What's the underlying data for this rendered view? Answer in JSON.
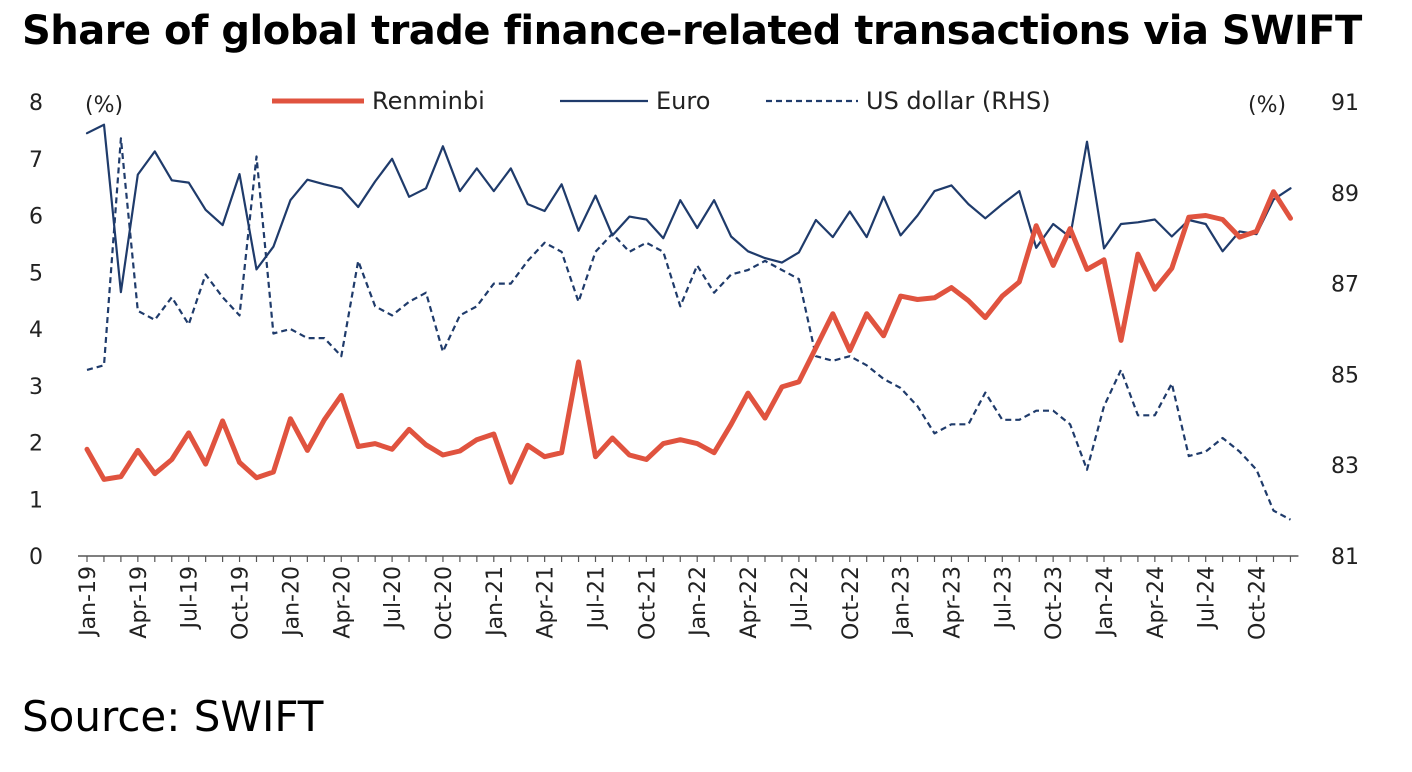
{
  "title": "Share of global trade finance-related transactions via SWIFT",
  "source": "Source: SWIFT",
  "chart_data": {
    "type": "line",
    "title": "Share of global trade finance-related transactions via SWIFT",
    "left_axis": {
      "unit": "(%)",
      "range": [
        0,
        8
      ],
      "ticks": [
        0,
        1,
        2,
        3,
        4,
        5,
        6,
        7,
        8
      ]
    },
    "right_axis": {
      "unit": "(%)",
      "range": [
        81,
        91
      ],
      "ticks": [
        81,
        83,
        85,
        87,
        89,
        91
      ]
    },
    "x_tick_labels": [
      "Jan-19",
      "Apr-19",
      "Jul-19",
      "Oct-19",
      "Jan-20",
      "Apr-20",
      "Jul-20",
      "Oct-20",
      "Jan-21",
      "Apr-21",
      "Jul-21",
      "Oct-21",
      "Jan-22",
      "Apr-22",
      "Jul-22",
      "Oct-22",
      "Jan-23",
      "Apr-23",
      "Jul-23",
      "Oct-23",
      "Jan-24",
      "Apr-24",
      "Jul-24",
      "Oct-24"
    ],
    "x": [
      "Jan-19",
      "Feb-19",
      "Mar-19",
      "Apr-19",
      "May-19",
      "Jun-19",
      "Jul-19",
      "Aug-19",
      "Sep-19",
      "Oct-19",
      "Nov-19",
      "Dec-19",
      "Jan-20",
      "Feb-20",
      "Mar-20",
      "Apr-20",
      "May-20",
      "Jun-20",
      "Jul-20",
      "Aug-20",
      "Sep-20",
      "Oct-20",
      "Nov-20",
      "Dec-20",
      "Jan-21",
      "Feb-21",
      "Mar-21",
      "Apr-21",
      "May-21",
      "Jun-21",
      "Jul-21",
      "Aug-21",
      "Sep-21",
      "Oct-21",
      "Nov-21",
      "Dec-21",
      "Jan-22",
      "Feb-22",
      "Mar-22",
      "Apr-22",
      "May-22",
      "Jun-22",
      "Jul-22",
      "Aug-22",
      "Sep-22",
      "Oct-22",
      "Nov-22",
      "Dec-22",
      "Jan-23",
      "Feb-23",
      "Mar-23",
      "Apr-23",
      "May-23",
      "Jun-23",
      "Jul-23",
      "Aug-23",
      "Sep-23",
      "Oct-23",
      "Nov-23",
      "Dec-23",
      "Jan-24",
      "Feb-24",
      "Mar-24",
      "Apr-24",
      "May-24",
      "Jun-24",
      "Jul-24",
      "Aug-24",
      "Sep-24",
      "Oct-24",
      "Nov-24",
      "Dec-24"
    ],
    "legend": {
      "placement": "top-center"
    },
    "grid": false,
    "series": [
      {
        "name": "Renminbi",
        "axis": "left",
        "color": "#e0533f",
        "style": "solid-thick",
        "values": [
          1.88,
          1.35,
          1.4,
          1.86,
          1.45,
          1.7,
          2.17,
          1.62,
          2.38,
          1.65,
          1.38,
          1.48,
          2.42,
          1.86,
          2.4,
          2.83,
          1.93,
          1.98,
          1.88,
          2.23,
          1.96,
          1.78,
          1.85,
          2.05,
          2.15,
          1.3,
          1.95,
          1.75,
          1.82,
          3.42,
          1.75,
          2.08,
          1.78,
          1.7,
          1.98,
          2.05,
          1.98,
          1.82,
          2.32,
          2.87,
          2.43,
          2.98,
          3.07,
          3.67,
          4.27,
          3.62,
          4.27,
          3.88,
          4.58,
          4.52,
          4.55,
          4.73,
          4.5,
          4.2,
          4.58,
          4.83,
          5.82,
          5.12,
          5.77,
          5.05,
          5.22,
          3.8,
          5.32,
          4.7,
          5.07,
          5.97,
          6.0,
          5.93,
          5.62,
          5.72,
          6.42,
          5.95
        ]
      },
      {
        "name": "Euro",
        "axis": "left",
        "color": "#1f3b6b",
        "style": "solid-thin",
        "values": [
          7.45,
          7.6,
          4.65,
          6.72,
          7.13,
          6.62,
          6.58,
          6.1,
          5.83,
          6.73,
          5.05,
          5.45,
          6.27,
          6.63,
          6.55,
          6.48,
          6.15,
          6.6,
          7.0,
          6.33,
          6.48,
          7.22,
          6.43,
          6.83,
          6.43,
          6.83,
          6.2,
          6.08,
          6.55,
          5.73,
          6.35,
          5.65,
          5.98,
          5.93,
          5.6,
          6.27,
          5.78,
          6.27,
          5.63,
          5.37,
          5.25,
          5.17,
          5.35,
          5.92,
          5.62,
          6.07,
          5.62,
          6.33,
          5.65,
          6.0,
          6.43,
          6.53,
          6.2,
          5.95,
          6.2,
          6.43,
          5.43,
          5.85,
          5.62,
          7.3,
          5.42,
          5.85,
          5.88,
          5.93,
          5.63,
          5.92,
          5.85,
          5.37,
          5.72,
          5.67,
          6.28,
          6.48
        ]
      },
      {
        "name": "US dollar (RHS)",
        "axis": "right",
        "color": "#1f3b6b",
        "style": "dashed",
        "values": [
          85.1,
          85.2,
          90.2,
          86.4,
          86.2,
          86.7,
          86.1,
          87.2,
          86.7,
          86.3,
          89.8,
          85.9,
          86.0,
          85.8,
          85.8,
          85.4,
          87.5,
          86.5,
          86.3,
          86.6,
          86.8,
          85.5,
          86.3,
          86.5,
          87.0,
          87.0,
          87.5,
          87.9,
          87.7,
          86.6,
          87.7,
          88.1,
          87.7,
          87.9,
          87.7,
          86.5,
          87.4,
          86.8,
          87.2,
          87.3,
          87.5,
          87.3,
          87.1,
          85.4,
          85.3,
          85.4,
          85.2,
          84.9,
          84.7,
          84.3,
          83.7,
          83.9,
          83.9,
          84.6,
          84.0,
          84.0,
          84.2,
          84.2,
          83.9,
          82.9,
          84.3,
          85.1,
          84.1,
          84.1,
          84.8,
          83.2,
          83.3,
          83.6,
          83.3,
          82.9,
          82.0,
          81.8
        ]
      }
    ]
  }
}
